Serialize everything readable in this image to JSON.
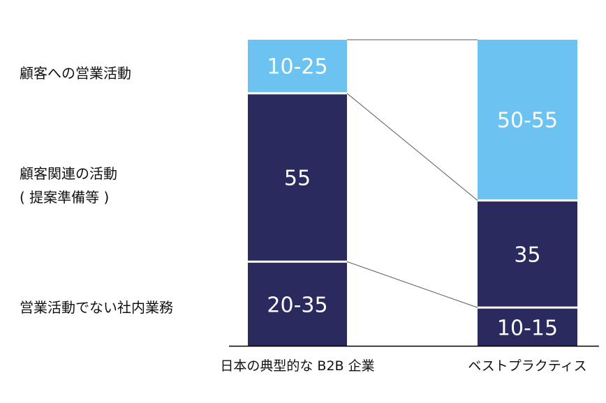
{
  "chart_data": {
    "type": "bar",
    "stacked": true,
    "categories": [
      "日本の典型的な B2B 企業",
      "ベストプラクティス"
    ],
    "series": [
      {
        "name": "営業活動でない社内業務",
        "labels": [
          "20-35",
          "10-15"
        ],
        "values": [
          27.5,
          12.5
        ],
        "color": "#2b2a5e"
      },
      {
        "name": "顧客関連の活動\n( 提案準備等 )",
        "labels": [
          "55",
          "35"
        ],
        "values": [
          55,
          35
        ],
        "color": "#2b2a5e"
      },
      {
        "name": "顧客への営業活動",
        "labels": [
          "10-25",
          "50-55"
        ],
        "values": [
          17.5,
          52.5
        ],
        "color": "#6cc3f2"
      }
    ],
    "title": "",
    "xlabel": "",
    "ylabel": "",
    "ylim": [
      0,
      100
    ],
    "grid": false,
    "legend": "left"
  }
}
